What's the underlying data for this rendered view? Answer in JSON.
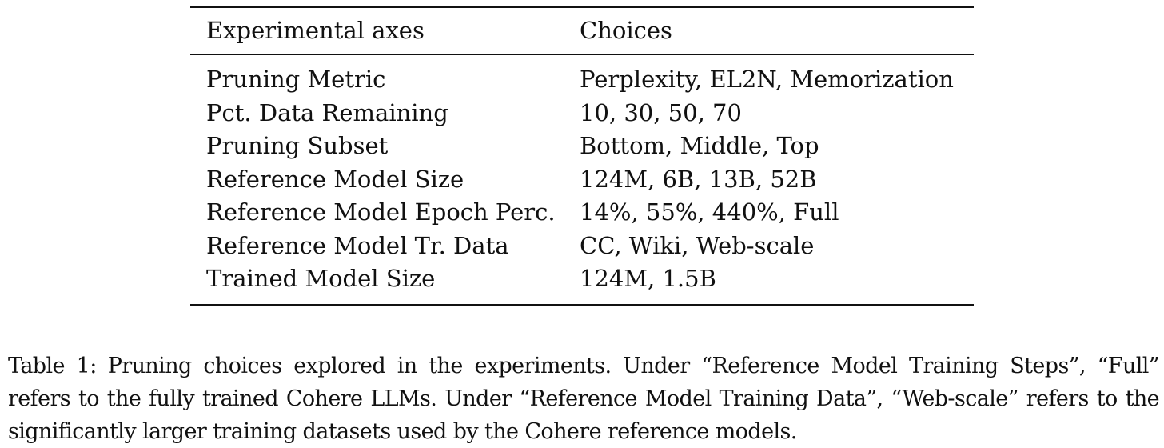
{
  "table": {
    "headers": [
      "Experimental axes",
      "Choices"
    ],
    "rows": [
      [
        "Pruning Metric",
        "Perplexity, EL2N, Memorization"
      ],
      [
        "Pct. Data Remaining",
        "10, 30, 50, 70"
      ],
      [
        "Pruning Subset",
        "Bottom, Middle, Top"
      ],
      [
        "Reference Model Size",
        "124M, 6B, 13B, 52B"
      ],
      [
        "Reference Model Epoch Perc.",
        "14%, 55%, 440%, Full"
      ],
      [
        "Reference Model Tr. Data",
        "CC, Wiki, Web-scale"
      ],
      [
        "Trained Model Size",
        "124M, 1.5B"
      ]
    ]
  },
  "caption": {
    "label": "Table 1:",
    "text": "Pruning choices explored in the experiments. Under “Reference Model Training Steps”, “Full” refers to the fully trained Cohere LLMs. Under “Reference Model Training Data”, “Web-scale” refers to the significantly larger training datasets used by the Cohere reference models."
  }
}
